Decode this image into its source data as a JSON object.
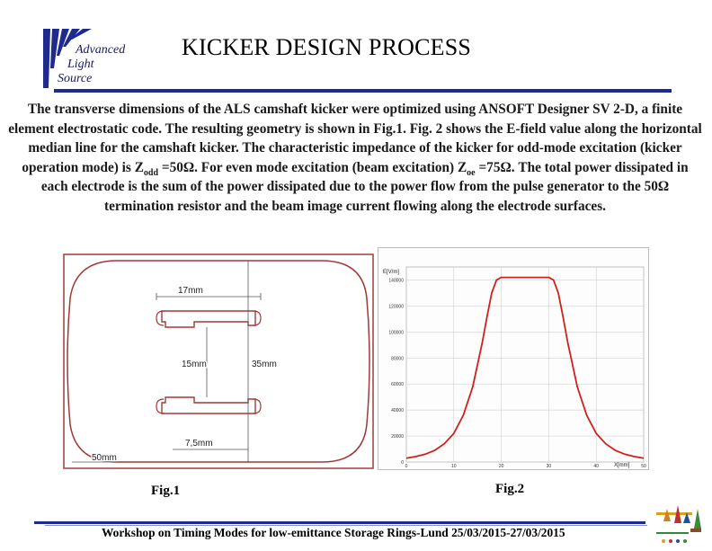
{
  "logo": {
    "word1": "Advanced",
    "word2": "Light",
    "word3": "Source"
  },
  "title": "KICKER DESIGN PROCESS",
  "body": {
    "p1": "The transverse dimensions of the ALS camshaft kicker were optimized using ANSOFT Designer SV 2-D, a finite element electrostatic code. The resulting geometry is shown in Fig.1. Fig. 2  shows the E-field value along the horizontal median line for the camshaft  kicker. The characteristic impedance of the kicker for odd-mode excitation (kicker operation mode) is Z",
    "sub1": "odd",
    "p2": " =50Ω. For even mode excitation (beam excitation) Z",
    "sub2": "oe",
    "p3": " =75Ω. The total power dissipated in each electrode is the sum of the power dissipated due to the power flow from the pulse generator to the 50Ω termination resistor and the beam image current flowing along the electrode surfaces."
  },
  "fig1": {
    "dim_17": "17mm",
    "dim_15": "15mm",
    "dim_35": "35mm",
    "dim_75": "7,5mm",
    "dim_50": "50mm",
    "caption": "Fig.1"
  },
  "fig2": {
    "caption": "Fig.2",
    "y_unit": "E[V/m]",
    "x_unit": "X[mm]"
  },
  "footer": {
    "text": "Workshop on Timing Modes for low-emittance Storage Rings-Lund 25/03/2015-27/03/2015"
  },
  "chart_data": {
    "type": "line",
    "xlabel": "X[mm]",
    "ylabel": "E[V/m]",
    "xlim": [
      0,
      50
    ],
    "ylim": [
      0,
      150000
    ],
    "x_ticks": [
      0,
      10,
      20,
      30,
      40,
      50
    ],
    "y_ticks": [
      0,
      20000,
      40000,
      60000,
      80000,
      100000,
      120000,
      140000
    ],
    "y_tick_labels": [
      "0",
      "20000",
      "40000",
      "60000",
      "80000",
      "100000",
      "120000",
      "140000"
    ],
    "grid": true,
    "series": [
      {
        "color": "#d0201c",
        "x": [
          0,
          2,
          4,
          6,
          8,
          10,
          12,
          14,
          16,
          17,
          18,
          19,
          20,
          22,
          25,
          28,
          30,
          31,
          32,
          33,
          34,
          36,
          38,
          40,
          42,
          44,
          46,
          48,
          50
        ],
        "y": [
          3000,
          4200,
          6000,
          9000,
          14000,
          22000,
          36000,
          58000,
          92000,
          112000,
          130000,
          140000,
          142000,
          142000,
          142000,
          142000,
          142000,
          140000,
          130000,
          112000,
          92000,
          58000,
          36000,
          22000,
          14000,
          9000,
          6000,
          4200,
          3000
        ]
      }
    ]
  },
  "colors": {
    "rule": "#1e2a8c",
    "curve": "#d0201c",
    "outline": "#a03a3a"
  }
}
